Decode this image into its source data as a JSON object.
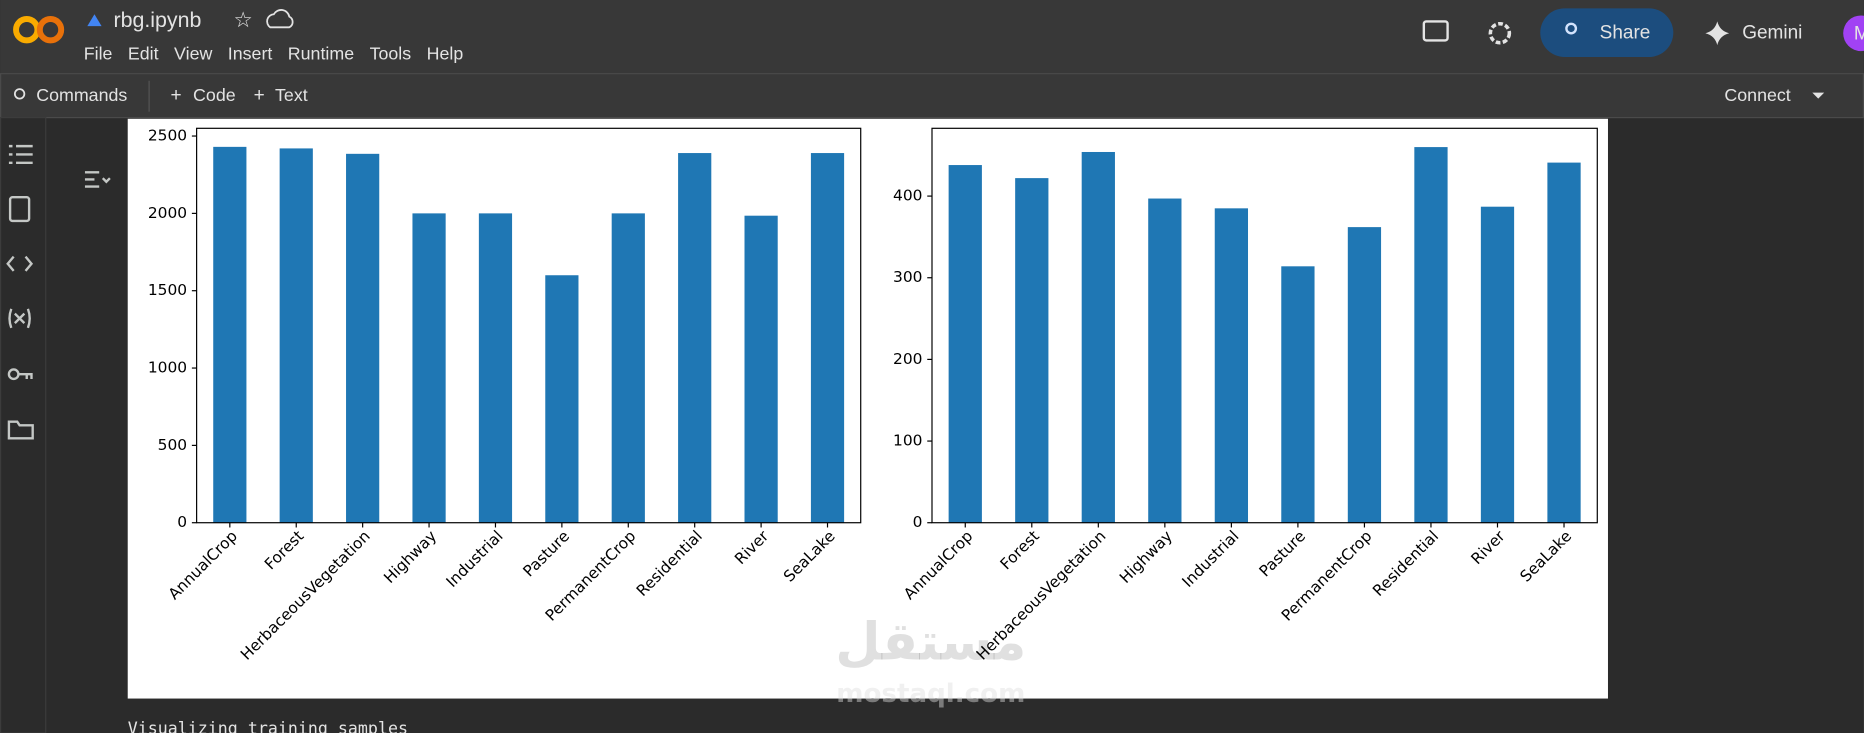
{
  "header": {
    "file_name": "rbg.ipynb",
    "menu": [
      "File",
      "Edit",
      "View",
      "Insert",
      "Runtime",
      "Tools",
      "Help"
    ],
    "share": "Share",
    "gemini": "Gemini",
    "avatar": "M"
  },
  "toolbar": {
    "commands": "Commands",
    "code": "Code",
    "text": "Text",
    "connect": "Connect"
  },
  "output_text": "Visualizing training samples",
  "watermark": {
    "arabic": "مستقل",
    "latin": "mostaql.com"
  },
  "chart_data": [
    {
      "type": "bar",
      "categories": [
        "AnnualCrop",
        "Forest",
        "HerbaceousVegetation",
        "Highway",
        "Industrial",
        "Pasture",
        "PermanentCrop",
        "Residential",
        "River",
        "SeaLake"
      ],
      "values": [
        2430,
        2420,
        2385,
        2000,
        2000,
        1600,
        2000,
        2390,
        1985,
        2390
      ],
      "color": "#1f77b4",
      "ylim": [
        0,
        2550
      ],
      "yticks": [
        0,
        500,
        1000,
        1500,
        2000,
        2500
      ],
      "grid": false
    },
    {
      "type": "bar",
      "categories": [
        "AnnualCrop",
        "Forest",
        "HerbaceousVegetation",
        "Highway",
        "Industrial",
        "Pasture",
        "PermanentCrop",
        "Residential",
        "River",
        "SeaLake"
      ],
      "values": [
        438,
        422,
        454,
        397,
        385,
        314,
        362,
        460,
        387,
        441
      ],
      "color": "#1f77b4",
      "ylim": [
        0,
        483
      ],
      "yticks": [
        0,
        100,
        200,
        300,
        400
      ],
      "grid": false
    }
  ]
}
